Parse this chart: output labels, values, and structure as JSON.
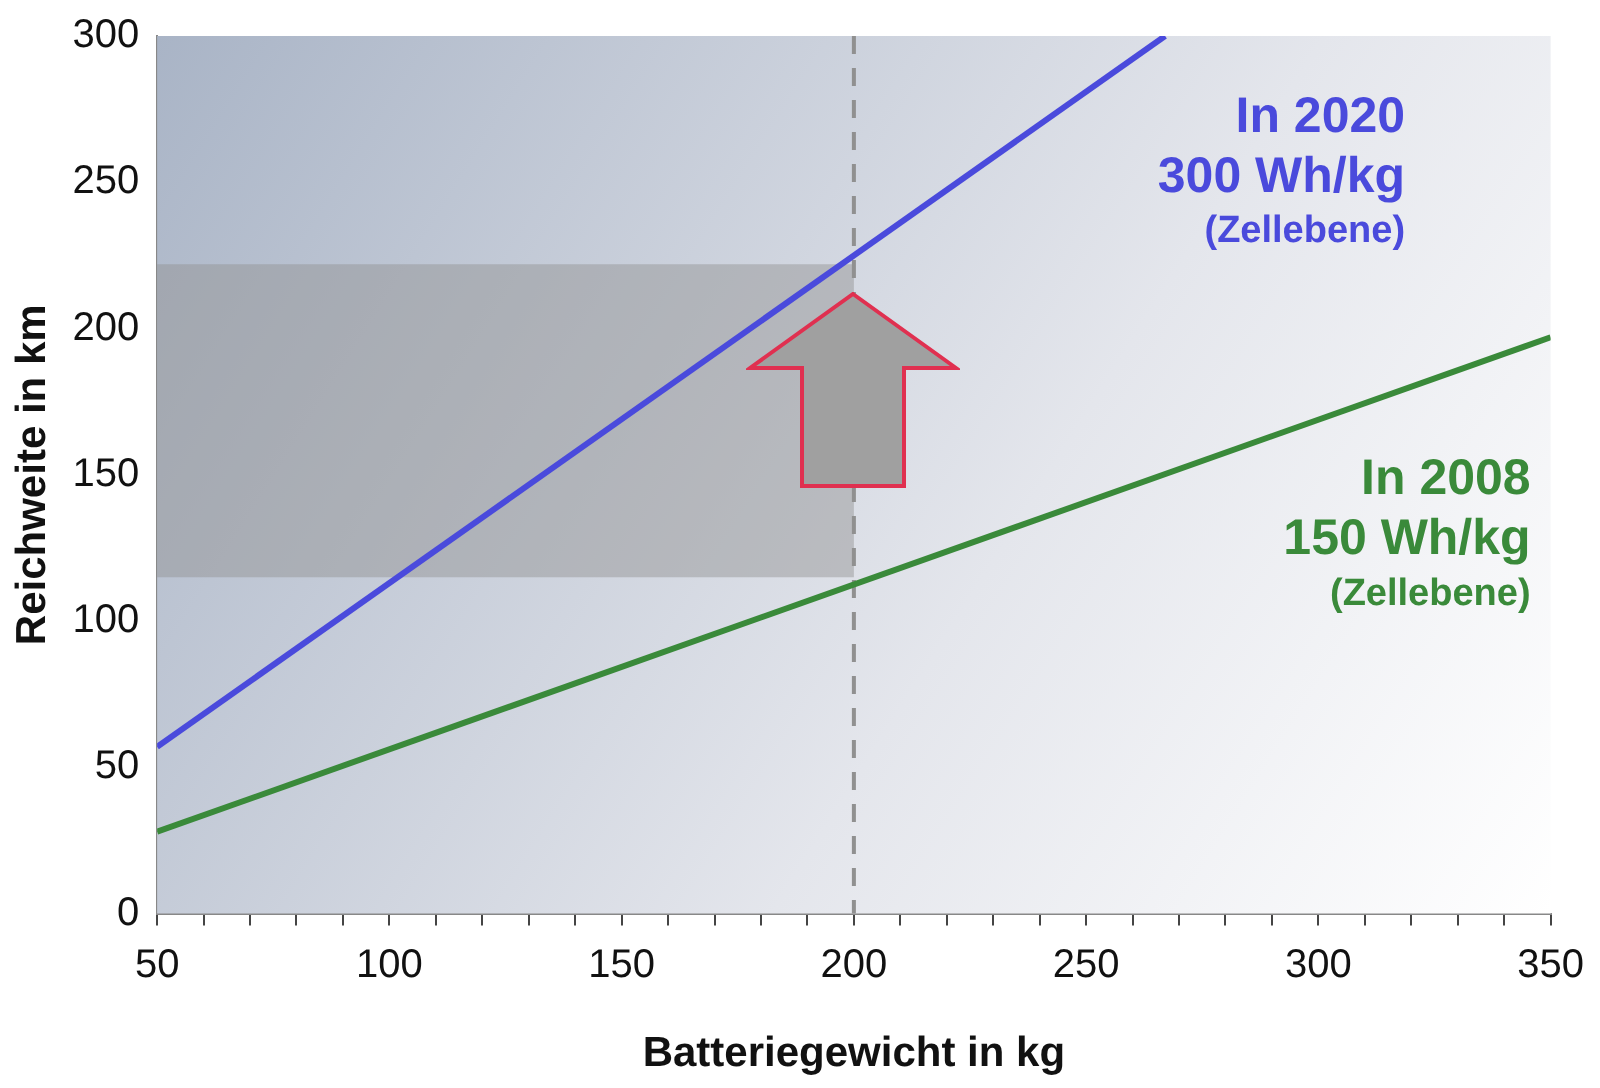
{
  "chart_data": {
    "type": "line",
    "xlabel": "Batteriegewicht in kg",
    "ylabel": "Reichweite in km",
    "series": [
      {
        "color": "#4a4adc",
        "x": [
          50,
          267
        ],
        "values": [
          57,
          300
        ]
      },
      {
        "color": "#3a8a3a",
        "x": [
          50,
          350
        ],
        "values": [
          28,
          197
        ]
      }
    ],
    "xlim": [
      50,
      350
    ],
    "ylim": [
      0,
      300
    ],
    "xticks": [
      50,
      {
        "value": 60,
        "label": null
      },
      {
        "value": 70,
        "label": null
      },
      {
        "value": 80,
        "label": null
      },
      {
        "value": 90,
        "label": null
      },
      100,
      {
        "value": 110,
        "label": null
      },
      {
        "value": 120,
        "label": null
      },
      {
        "value": 130,
        "label": null
      },
      {
        "value": 140,
        "label": null
      },
      150,
      {
        "value": 160,
        "label": null
      },
      {
        "value": 170,
        "label": null
      },
      {
        "value": 180,
        "label": null
      },
      {
        "value": 190,
        "label": null
      },
      200,
      {
        "value": 210,
        "label": null
      },
      {
        "value": 220,
        "label": null
      },
      {
        "value": 230,
        "label": null
      },
      {
        "value": 240,
        "label": null
      },
      250,
      {
        "value": 260,
        "label": null
      },
      {
        "value": 270,
        "label": null
      },
      {
        "value": 280,
        "label": null
      },
      {
        "value": 290,
        "label": null
      },
      300,
      {
        "value": 310,
        "label": null
      },
      {
        "value": 320,
        "label": null
      },
      {
        "value": 330,
        "label": null
      },
      {
        "value": 340,
        "label": null
      },
      350
    ],
    "yticks": [
      0,
      50,
      100,
      150,
      200,
      250,
      300
    ],
    "ref_lines": [
      {
        "axis": "x",
        "value": 200,
        "color": "#909090",
        "line_style": "dashed"
      }
    ],
    "bands": [
      {
        "axis": "y",
        "from": 115,
        "to": 222,
        "color": "#909090"
      }
    ],
    "annotations": [
      "In 2020\n300 Wh/kg\n(Zellebene)",
      "In 2008\n150 Wh/kg\n(Zellebene)"
    ],
    "grid": false,
    "legend": false,
    "marker": "none",
    "line_style": "solid"
  }
}
